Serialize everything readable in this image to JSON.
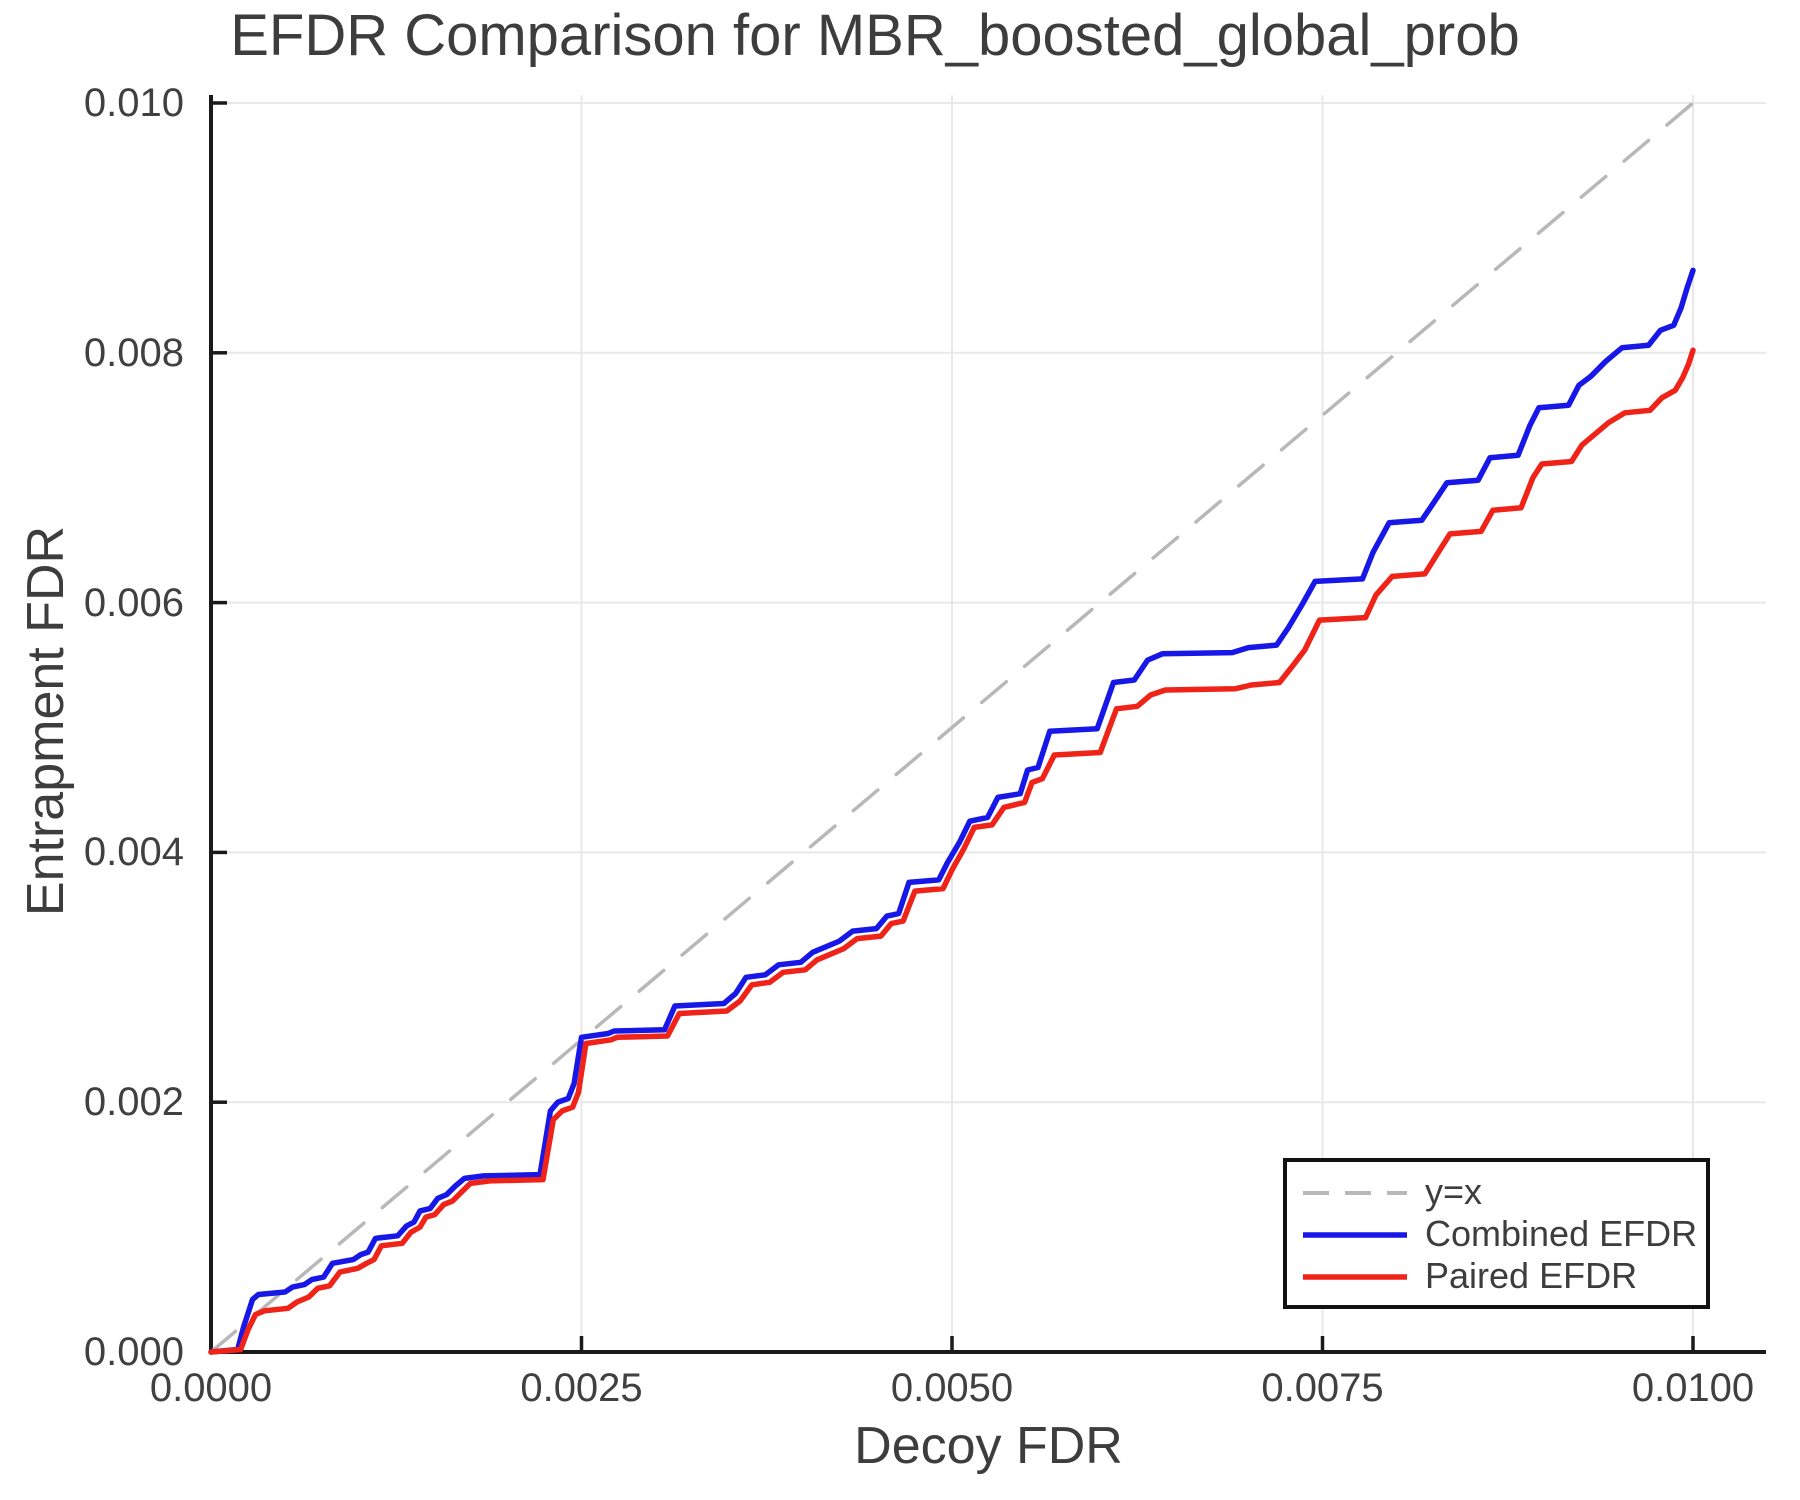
{
  "chart_data": {
    "type": "line",
    "title": "EFDR Comparison for MBR_boosted_global_prob",
    "xlabel": "Decoy FDR",
    "ylabel": "Entrapment FDR",
    "xlim": [
      0,
      0.010492
    ],
    "ylim": [
      0,
      0.010064
    ],
    "grid": true,
    "legend_position": "bottom-right",
    "x_ticks": [
      0.0,
      0.0025,
      0.005,
      0.0075,
      0.01
    ],
    "x_tick_labels": [
      "0.0000",
      "0.0025",
      "0.0050",
      "0.0075",
      "0.0100"
    ],
    "y_ticks": [
      0.0,
      0.002,
      0.004,
      0.006,
      0.008,
      0.01
    ],
    "y_tick_labels": [
      "0.000",
      "0.002",
      "0.004",
      "0.006",
      "0.008",
      "0.010"
    ],
    "colors": {
      "reference": "#b8b8b8",
      "combined": "#1717e8",
      "paired": "#f02318",
      "grid": "#e8e8e8",
      "spine": "#1a1a1a",
      "text": "#3d3d3d"
    },
    "series": [
      {
        "name": "y=x",
        "color": "#b8b8b8",
        "style": "dashed",
        "points": [
          [
            0.0,
            0.0
          ],
          [
            0.010064,
            0.010064
          ]
        ]
      },
      {
        "name": "Combined EFDR",
        "color": "#1717e8",
        "style": "solid",
        "points": [
          [
            0.0,
            0.0
          ],
          [
            0.00018,
            2e-05
          ],
          [
            0.00022,
            0.0002
          ],
          [
            0.00028,
            0.00042
          ],
          [
            0.00032,
            0.00046
          ],
          [
            0.0005,
            0.00048
          ],
          [
            0.00055,
            0.00052
          ],
          [
            0.00063,
            0.00054
          ],
          [
            0.00068,
            0.00058
          ],
          [
            0.00076,
            0.0006
          ],
          [
            0.00082,
            0.00071
          ],
          [
            0.00096,
            0.00074
          ],
          [
            0.00101,
            0.00078
          ],
          [
            0.00106,
            0.0008
          ],
          [
            0.00111,
            0.00091
          ],
          [
            0.00126,
            0.00093
          ],
          [
            0.00132,
            0.00101
          ],
          [
            0.00137,
            0.00104
          ],
          [
            0.00141,
            0.00113
          ],
          [
            0.00148,
            0.00115
          ],
          [
            0.00153,
            0.00123
          ],
          [
            0.00159,
            0.00126
          ],
          [
            0.00165,
            0.00133
          ],
          [
            0.00171,
            0.00139
          ],
          [
            0.00184,
            0.00141
          ],
          [
            0.00222,
            0.00142
          ],
          [
            0.00229,
            0.00193
          ],
          [
            0.00234,
            0.002
          ],
          [
            0.00241,
            0.00203
          ],
          [
            0.00245,
            0.00215
          ],
          [
            0.0025,
            0.00252
          ],
          [
            0.00268,
            0.00255
          ],
          [
            0.00272,
            0.00257
          ],
          [
            0.00306,
            0.00258
          ],
          [
            0.00313,
            0.00277
          ],
          [
            0.00346,
            0.00279
          ],
          [
            0.00354,
            0.00287
          ],
          [
            0.00361,
            0.003
          ],
          [
            0.00374,
            0.00302
          ],
          [
            0.00383,
            0.0031
          ],
          [
            0.00398,
            0.00312
          ],
          [
            0.00406,
            0.0032
          ],
          [
            0.00424,
            0.00329
          ],
          [
            0.00433,
            0.00337
          ],
          [
            0.00449,
            0.00339
          ],
          [
            0.00456,
            0.00349
          ],
          [
            0.00464,
            0.00351
          ],
          [
            0.00471,
            0.00376
          ],
          [
            0.00491,
            0.00378
          ],
          [
            0.00497,
            0.00392
          ],
          [
            0.00505,
            0.00408
          ],
          [
            0.00512,
            0.00425
          ],
          [
            0.00524,
            0.00428
          ],
          [
            0.00531,
            0.00444
          ],
          [
            0.00546,
            0.00447
          ],
          [
            0.00551,
            0.00466
          ],
          [
            0.00558,
            0.00468
          ],
          [
            0.00566,
            0.00497
          ],
          [
            0.00598,
            0.00499
          ],
          [
            0.00609,
            0.00536
          ],
          [
            0.00623,
            0.00538
          ],
          [
            0.00632,
            0.00554
          ],
          [
            0.00642,
            0.00559
          ],
          [
            0.00689,
            0.0056
          ],
          [
            0.007,
            0.00564
          ],
          [
            0.00719,
            0.00566
          ],
          [
            0.00727,
            0.0058
          ],
          [
            0.00736,
            0.00598
          ],
          [
            0.00745,
            0.00617
          ],
          [
            0.00777,
            0.00619
          ],
          [
            0.00784,
            0.0064
          ],
          [
            0.00795,
            0.00664
          ],
          [
            0.00817,
            0.00666
          ],
          [
            0.00825,
            0.0068
          ],
          [
            0.00834,
            0.00696
          ],
          [
            0.00855,
            0.00698
          ],
          [
            0.00863,
            0.00716
          ],
          [
            0.00882,
            0.00718
          ],
          [
            0.0089,
            0.00742
          ],
          [
            0.00896,
            0.00756
          ],
          [
            0.00916,
            0.00758
          ],
          [
            0.00923,
            0.00774
          ],
          [
            0.00931,
            0.00781
          ],
          [
            0.00941,
            0.00793
          ],
          [
            0.00952,
            0.00804
          ],
          [
            0.0097,
            0.00806
          ],
          [
            0.00978,
            0.00818
          ],
          [
            0.00987,
            0.00822
          ],
          [
            0.00992,
            0.00836
          ],
          [
            0.00996,
            0.00852
          ],
          [
            0.01,
            0.00866
          ]
        ]
      },
      {
        "name": "Paired EFDR",
        "color": "#f02318",
        "style": "solid",
        "points": [
          [
            0.0,
            0.0
          ],
          [
            0.0002,
            2e-05
          ],
          [
            0.00025,
            0.00018
          ],
          [
            0.0003,
            0.0003
          ],
          [
            0.00036,
            0.00033
          ],
          [
            0.00052,
            0.00035
          ],
          [
            0.00058,
            0.0004
          ],
          [
            0.00066,
            0.00044
          ],
          [
            0.00072,
            0.00051
          ],
          [
            0.0008,
            0.00053
          ],
          [
            0.00087,
            0.00064
          ],
          [
            0.00099,
            0.00067
          ],
          [
            0.00105,
            0.00071
          ],
          [
            0.0011,
            0.00074
          ],
          [
            0.00115,
            0.00085
          ],
          [
            0.00129,
            0.00087
          ],
          [
            0.00135,
            0.00096
          ],
          [
            0.00141,
            0.001
          ],
          [
            0.00145,
            0.00108
          ],
          [
            0.00151,
            0.0011
          ],
          [
            0.00157,
            0.00118
          ],
          [
            0.00163,
            0.00121
          ],
          [
            0.00169,
            0.00128
          ],
          [
            0.00175,
            0.00135
          ],
          [
            0.00188,
            0.00137
          ],
          [
            0.00224,
            0.00138
          ],
          [
            0.00231,
            0.00186
          ],
          [
            0.00237,
            0.00193
          ],
          [
            0.00244,
            0.00196
          ],
          [
            0.00248,
            0.00208
          ],
          [
            0.00253,
            0.00247
          ],
          [
            0.0027,
            0.0025
          ],
          [
            0.00274,
            0.00252
          ],
          [
            0.00308,
            0.00253
          ],
          [
            0.00316,
            0.00271
          ],
          [
            0.00348,
            0.00273
          ],
          [
            0.00357,
            0.00281
          ],
          [
            0.00365,
            0.00294
          ],
          [
            0.00377,
            0.00296
          ],
          [
            0.00386,
            0.00304
          ],
          [
            0.00401,
            0.00306
          ],
          [
            0.00409,
            0.00314
          ],
          [
            0.00427,
            0.00323
          ],
          [
            0.00436,
            0.00331
          ],
          [
            0.00452,
            0.00333
          ],
          [
            0.00459,
            0.00343
          ],
          [
            0.00467,
            0.00345
          ],
          [
            0.00475,
            0.00369
          ],
          [
            0.00494,
            0.00371
          ],
          [
            0.005,
            0.00386
          ],
          [
            0.00508,
            0.00403
          ],
          [
            0.00515,
            0.0042
          ],
          [
            0.00527,
            0.00422
          ],
          [
            0.00535,
            0.00436
          ],
          [
            0.00549,
            0.0044
          ],
          [
            0.00554,
            0.00456
          ],
          [
            0.00561,
            0.00459
          ],
          [
            0.00569,
            0.00478
          ],
          [
            0.006,
            0.0048
          ],
          [
            0.00611,
            0.00515
          ],
          [
            0.00625,
            0.00517
          ],
          [
            0.00634,
            0.00526
          ],
          [
            0.00644,
            0.0053
          ],
          [
            0.00691,
            0.00531
          ],
          [
            0.00702,
            0.00534
          ],
          [
            0.00721,
            0.00536
          ],
          [
            0.00729,
            0.00548
          ],
          [
            0.00738,
            0.00562
          ],
          [
            0.00748,
            0.00586
          ],
          [
            0.00779,
            0.00588
          ],
          [
            0.00786,
            0.00606
          ],
          [
            0.00797,
            0.00621
          ],
          [
            0.00819,
            0.00623
          ],
          [
            0.00827,
            0.00638
          ],
          [
            0.00836,
            0.00655
          ],
          [
            0.00857,
            0.00657
          ],
          [
            0.00865,
            0.00674
          ],
          [
            0.00884,
            0.00676
          ],
          [
            0.00892,
            0.007
          ],
          [
            0.00898,
            0.00711
          ],
          [
            0.00918,
            0.00713
          ],
          [
            0.00925,
            0.00726
          ],
          [
            0.00933,
            0.00734
          ],
          [
            0.00943,
            0.00744
          ],
          [
            0.00954,
            0.00752
          ],
          [
            0.00971,
            0.00754
          ],
          [
            0.00979,
            0.00764
          ],
          [
            0.00988,
            0.0077
          ],
          [
            0.00993,
            0.0078
          ],
          [
            0.00997,
            0.00791
          ],
          [
            0.01,
            0.00802
          ]
        ]
      }
    ]
  }
}
